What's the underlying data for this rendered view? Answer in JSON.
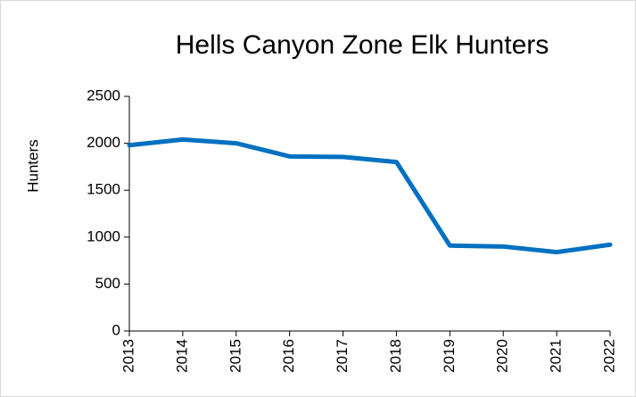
{
  "chart_data": {
    "type": "line",
    "title": "Hells Canyon Zone Elk Hunters",
    "y_label": "Hunters",
    "categories": [
      "2013",
      "2014",
      "2015",
      "2016",
      "2017",
      "2018",
      "2019",
      "2020",
      "2021",
      "2022"
    ],
    "values": [
      1980,
      2040,
      2000,
      1860,
      1855,
      1800,
      910,
      900,
      840,
      920
    ],
    "color": "#0070c0",
    "ylim": [
      0,
      2500
    ],
    "yticks": [
      0,
      500,
      1000,
      1500,
      2000,
      2500
    ],
    "grid": false
  }
}
